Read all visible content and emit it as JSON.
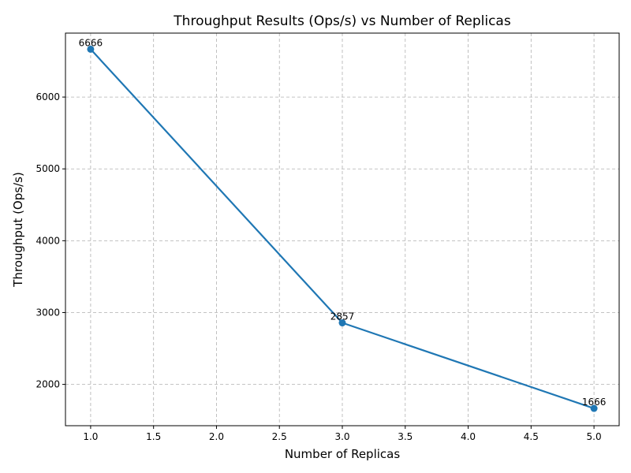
{
  "chart_data": {
    "type": "line",
    "title": "Throughput Results (Ops/s) vs Number of Replicas",
    "xlabel": "Number of Replicas",
    "ylabel": "Throughput (Ops/s)",
    "xlim": [
      0.8,
      5.2
    ],
    "ylim": [
      1425,
      6890
    ],
    "grid": true,
    "x_ticks": [
      1.0,
      1.5,
      2.0,
      2.5,
      3.0,
      3.5,
      4.0,
      4.5,
      5.0
    ],
    "x_tick_labels": [
      "1.0",
      "1.5",
      "2.0",
      "2.5",
      "3.0",
      "3.5",
      "4.0",
      "4.5",
      "5.0"
    ],
    "y_ticks": [
      2000,
      3000,
      4000,
      5000,
      6000
    ],
    "y_tick_labels": [
      "2000",
      "3000",
      "4000",
      "5000",
      "6000"
    ],
    "series": [
      {
        "x": [
          1,
          3,
          5
        ],
        "values": [
          6666,
          2857,
          1666
        ],
        "data_labels": [
          "6666",
          "2857",
          "1666"
        ],
        "color": "#1f77b4",
        "marker": "circle"
      }
    ]
  }
}
